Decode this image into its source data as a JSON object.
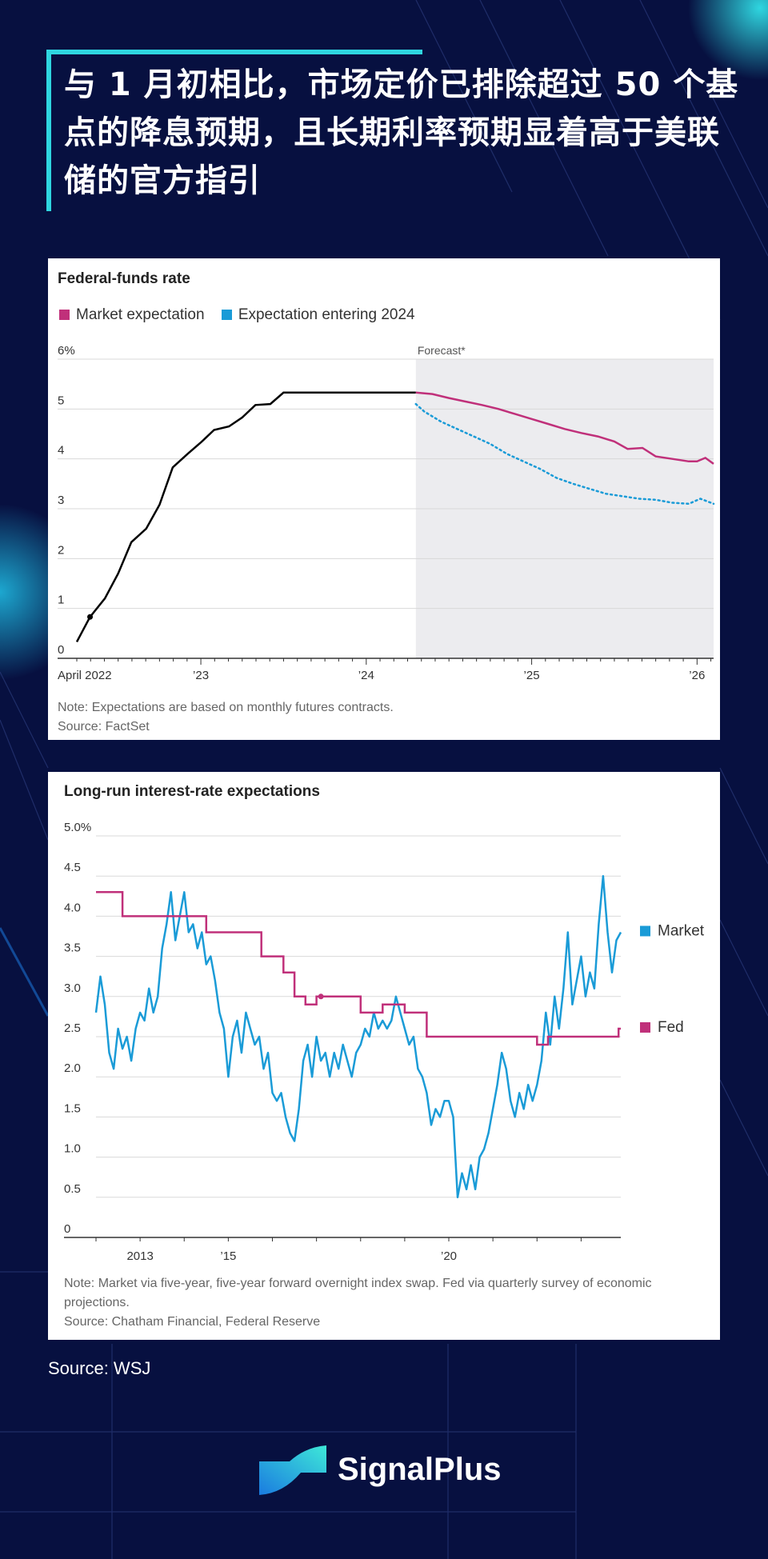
{
  "headline": "与 1 月初相比，市场定价已排除超过 50 个基点的降息预期，且长期利率预期显着高于美联储的官方指引",
  "source_text": "Source: WSJ",
  "brand_name": "SignalPlus",
  "colors": {
    "background": "#071040",
    "accent": "#2fd6e0",
    "market": "#c0307a",
    "entering": "#1a9bd7",
    "fed": "#c0307a",
    "market_lr": "#1a9bd7"
  },
  "chart_data": [
    {
      "type": "line",
      "title": "Federal-funds rate",
      "legend": [
        "Market expectation",
        "Expectation entering 2024"
      ],
      "forecast_label": "Forecast*",
      "y_ticks": [
        "6%",
        "5",
        "4",
        "3",
        "2",
        "1",
        "0"
      ],
      "x_ticks": [
        "April 2022",
        "’23",
        "’24",
        "’25",
        "’26"
      ],
      "ylim": [
        0,
        6
      ],
      "xlim": [
        2022.25,
        2026.1
      ],
      "forecast_start": 2024.3,
      "series": [
        {
          "key": "actual",
          "color": "#000000",
          "points": [
            [
              2022.25,
              0.33
            ],
            [
              2022.33,
              0.83
            ],
            [
              2022.42,
              1.2
            ],
            [
              2022.5,
              1.7
            ],
            [
              2022.58,
              2.33
            ],
            [
              2022.67,
              2.6
            ],
            [
              2022.75,
              3.08
            ],
            [
              2022.83,
              3.83
            ],
            [
              2022.92,
              4.1
            ],
            [
              2023.0,
              4.33
            ],
            [
              2023.08,
              4.58
            ],
            [
              2023.17,
              4.65
            ],
            [
              2023.25,
              4.83
            ],
            [
              2023.33,
              5.08
            ],
            [
              2023.42,
              5.1
            ],
            [
              2023.5,
              5.33
            ],
            [
              2023.6,
              5.33
            ],
            [
              2024.0,
              5.33
            ],
            [
              2024.3,
              5.33
            ]
          ]
        },
        {
          "name": "Market expectation",
          "color": "#c0307a",
          "points": [
            [
              2024.3,
              5.33
            ],
            [
              2024.4,
              5.3
            ],
            [
              2024.5,
              5.22
            ],
            [
              2024.6,
              5.15
            ],
            [
              2024.7,
              5.08
            ],
            [
              2024.8,
              5.0
            ],
            [
              2024.9,
              4.9
            ],
            [
              2025.0,
              4.8
            ],
            [
              2025.1,
              4.7
            ],
            [
              2025.2,
              4.6
            ],
            [
              2025.3,
              4.52
            ],
            [
              2025.4,
              4.45
            ],
            [
              2025.5,
              4.35
            ],
            [
              2025.58,
              4.2
            ],
            [
              2025.67,
              4.22
            ],
            [
              2025.75,
              4.05
            ],
            [
              2025.85,
              4.0
            ],
            [
              2025.95,
              3.95
            ],
            [
              2026.0,
              3.95
            ],
            [
              2026.05,
              4.02
            ],
            [
              2026.1,
              3.9
            ]
          ]
        },
        {
          "name": "Expectation entering 2024",
          "color": "#1a9bd7",
          "dotted": true,
          "points": [
            [
              2024.3,
              5.1
            ],
            [
              2024.35,
              4.95
            ],
            [
              2024.45,
              4.75
            ],
            [
              2024.55,
              4.6
            ],
            [
              2024.65,
              4.45
            ],
            [
              2024.75,
              4.3
            ],
            [
              2024.85,
              4.1
            ],
            [
              2024.95,
              3.95
            ],
            [
              2025.05,
              3.8
            ],
            [
              2025.15,
              3.62
            ],
            [
              2025.25,
              3.5
            ],
            [
              2025.35,
              3.4
            ],
            [
              2025.45,
              3.3
            ],
            [
              2025.55,
              3.25
            ],
            [
              2025.65,
              3.2
            ],
            [
              2025.75,
              3.18
            ],
            [
              2025.85,
              3.12
            ],
            [
              2025.95,
              3.1
            ],
            [
              2026.02,
              3.2
            ],
            [
              2026.1,
              3.1
            ]
          ]
        }
      ],
      "note": "Note: Expectations are based on monthly futures contracts.",
      "source": "Source: FactSet"
    },
    {
      "type": "line",
      "title": "Long-run interest-rate expectations",
      "y_ticks": [
        "5.0%",
        "4.5",
        "4.0",
        "3.5",
        "3.0",
        "2.5",
        "2.0",
        "1.5",
        "1.0",
        "0.5",
        "0"
      ],
      "x_ticks": [
        "2013",
        "’15",
        "’20"
      ],
      "ylim": [
        0,
        5
      ],
      "xlim": [
        2012,
        2023.9
      ],
      "legend": [
        "Market",
        "Fed"
      ],
      "series": [
        {
          "name": "Market",
          "color": "#1a9bd7",
          "points": [
            [
              2012.0,
              2.8
            ],
            [
              2012.1,
              3.25
            ],
            [
              2012.2,
              2.9
            ],
            [
              2012.3,
              2.3
            ],
            [
              2012.4,
              2.1
            ],
            [
              2012.5,
              2.6
            ],
            [
              2012.6,
              2.35
            ],
            [
              2012.7,
              2.5
            ],
            [
              2012.8,
              2.2
            ],
            [
              2012.9,
              2.6
            ],
            [
              2013.0,
              2.8
            ],
            [
              2013.1,
              2.7
            ],
            [
              2013.2,
              3.1
            ],
            [
              2013.3,
              2.8
            ],
            [
              2013.4,
              3.0
            ],
            [
              2013.5,
              3.6
            ],
            [
              2013.6,
              3.9
            ],
            [
              2013.7,
              4.3
            ],
            [
              2013.8,
              3.7
            ],
            [
              2013.9,
              4.0
            ],
            [
              2014.0,
              4.3
            ],
            [
              2014.1,
              3.8
            ],
            [
              2014.2,
              3.9
            ],
            [
              2014.3,
              3.6
            ],
            [
              2014.4,
              3.8
            ],
            [
              2014.5,
              3.4
            ],
            [
              2014.6,
              3.5
            ],
            [
              2014.7,
              3.2
            ],
            [
              2014.8,
              2.8
            ],
            [
              2014.9,
              2.6
            ],
            [
              2015.0,
              2.0
            ],
            [
              2015.1,
              2.5
            ],
            [
              2015.2,
              2.7
            ],
            [
              2015.3,
              2.3
            ],
            [
              2015.4,
              2.8
            ],
            [
              2015.5,
              2.6
            ],
            [
              2015.6,
              2.4
            ],
            [
              2015.7,
              2.5
            ],
            [
              2015.8,
              2.1
            ],
            [
              2015.9,
              2.3
            ],
            [
              2016.0,
              1.8
            ],
            [
              2016.1,
              1.7
            ],
            [
              2016.2,
              1.8
            ],
            [
              2016.3,
              1.5
            ],
            [
              2016.4,
              1.3
            ],
            [
              2016.5,
              1.2
            ],
            [
              2016.6,
              1.6
            ],
            [
              2016.7,
              2.2
            ],
            [
              2016.8,
              2.4
            ],
            [
              2016.9,
              2.0
            ],
            [
              2017.0,
              2.5
            ],
            [
              2017.1,
              2.2
            ],
            [
              2017.2,
              2.3
            ],
            [
              2017.3,
              2.0
            ],
            [
              2017.4,
              2.3
            ],
            [
              2017.5,
              2.1
            ],
            [
              2017.6,
              2.4
            ],
            [
              2017.7,
              2.2
            ],
            [
              2017.8,
              2.0
            ],
            [
              2017.9,
              2.3
            ],
            [
              2018.0,
              2.4
            ],
            [
              2018.1,
              2.6
            ],
            [
              2018.2,
              2.5
            ],
            [
              2018.3,
              2.8
            ],
            [
              2018.4,
              2.6
            ],
            [
              2018.5,
              2.7
            ],
            [
              2018.6,
              2.6
            ],
            [
              2018.7,
              2.7
            ],
            [
              2018.8,
              3.0
            ],
            [
              2018.9,
              2.8
            ],
            [
              2019.0,
              2.6
            ],
            [
              2019.1,
              2.4
            ],
            [
              2019.2,
              2.5
            ],
            [
              2019.3,
              2.1
            ],
            [
              2019.4,
              2.0
            ],
            [
              2019.5,
              1.8
            ],
            [
              2019.6,
              1.4
            ],
            [
              2019.7,
              1.6
            ],
            [
              2019.8,
              1.5
            ],
            [
              2019.9,
              1.7
            ],
            [
              2020.0,
              1.7
            ],
            [
              2020.1,
              1.5
            ],
            [
              2020.2,
              0.5
            ],
            [
              2020.3,
              0.8
            ],
            [
              2020.4,
              0.6
            ],
            [
              2020.5,
              0.9
            ],
            [
              2020.6,
              0.6
            ],
            [
              2020.7,
              1.0
            ],
            [
              2020.8,
              1.1
            ],
            [
              2020.9,
              1.3
            ],
            [
              2021.0,
              1.6
            ],
            [
              2021.1,
              1.9
            ],
            [
              2021.2,
              2.3
            ],
            [
              2021.3,
              2.1
            ],
            [
              2021.4,
              1.7
            ],
            [
              2021.5,
              1.5
            ],
            [
              2021.6,
              1.8
            ],
            [
              2021.7,
              1.6
            ],
            [
              2021.8,
              1.9
            ],
            [
              2021.9,
              1.7
            ],
            [
              2022.0,
              1.9
            ],
            [
              2022.1,
              2.2
            ],
            [
              2022.2,
              2.8
            ],
            [
              2022.3,
              2.4
            ],
            [
              2022.4,
              3.0
            ],
            [
              2022.5,
              2.6
            ],
            [
              2022.6,
              3.1
            ],
            [
              2022.7,
              3.8
            ],
            [
              2022.8,
              2.9
            ],
            [
              2022.9,
              3.2
            ],
            [
              2023.0,
              3.5
            ],
            [
              2023.1,
              3.0
            ],
            [
              2023.2,
              3.3
            ],
            [
              2023.3,
              3.1
            ],
            [
              2023.4,
              3.9
            ],
            [
              2023.5,
              4.5
            ],
            [
              2023.6,
              3.8
            ],
            [
              2023.7,
              3.3
            ],
            [
              2023.8,
              3.7
            ],
            [
              2023.9,
              3.8
            ]
          ]
        },
        {
          "name": "Fed",
          "color": "#c0307a",
          "steps": [
            [
              2012.0,
              4.3
            ],
            [
              2012.6,
              4.0
            ],
            [
              2014.5,
              3.8
            ],
            [
              2015.75,
              3.5
            ],
            [
              2016.25,
              3.3
            ],
            [
              2016.5,
              3.0
            ],
            [
              2016.75,
              2.9
            ],
            [
              2017.0,
              3.0
            ],
            [
              2018.0,
              2.8
            ],
            [
              2018.5,
              2.9
            ],
            [
              2019.0,
              2.8
            ],
            [
              2019.5,
              2.5
            ],
            [
              2022.0,
              2.4
            ],
            [
              2022.25,
              2.5
            ],
            [
              2023.85,
              2.6
            ]
          ]
        }
      ],
      "note": "Note: Market via five-year, five-year forward overnight index swap. Fed via quarterly survey of economic projections.",
      "source": "Source: Chatham Financial, Federal Reserve"
    }
  ]
}
